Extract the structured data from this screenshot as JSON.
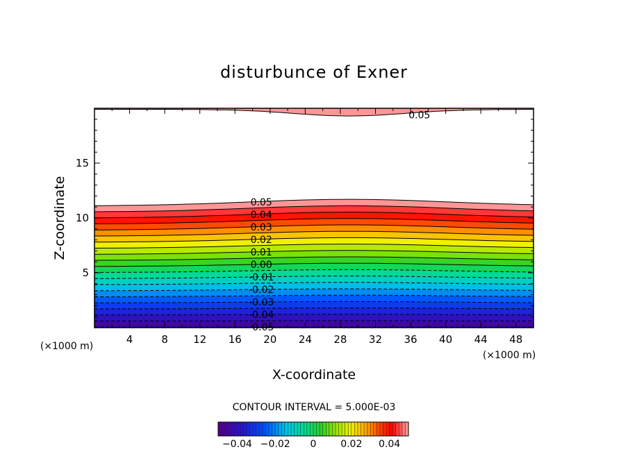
{
  "chart_data": {
    "type": "heatmap",
    "title": "disturbunce of Exner",
    "xlabel": "X-coordinate",
    "ylabel": "Z-coordinate",
    "x_unit": "(×1000 m)",
    "y_unit": "(×1000 m)",
    "xlim": [
      0,
      50
    ],
    "ylim": [
      0,
      20
    ],
    "x_ticks": [
      4,
      8,
      12,
      16,
      20,
      24,
      28,
      32,
      36,
      40,
      44,
      48
    ],
    "y_ticks": [
      5,
      10,
      15
    ],
    "contour_interval_label": "CONTOUR INTERVAL = 5.000E-03",
    "colorbar_ticks": [
      "−0.04",
      "−0.02",
      "0",
      "0.02",
      "0.04"
    ],
    "colorbar_range": [
      -0.05,
      0.05
    ],
    "contour_labels": [
      "0.05",
      "0.05",
      "0.04",
      "0.03",
      "0.02",
      "0.01",
      "0.00",
      "-0.01",
      "-0.02",
      "-0.03",
      "-0.04",
      "-0.05"
    ],
    "lower_field_boundary_height": [
      11.1,
      11.7,
      11.1
    ],
    "top_field_boundary_height": [
      19.9,
      19.3,
      19.9
    ],
    "notes_data": "contour heights vary along x with maximum near x=29; negative contours dashed"
  }
}
